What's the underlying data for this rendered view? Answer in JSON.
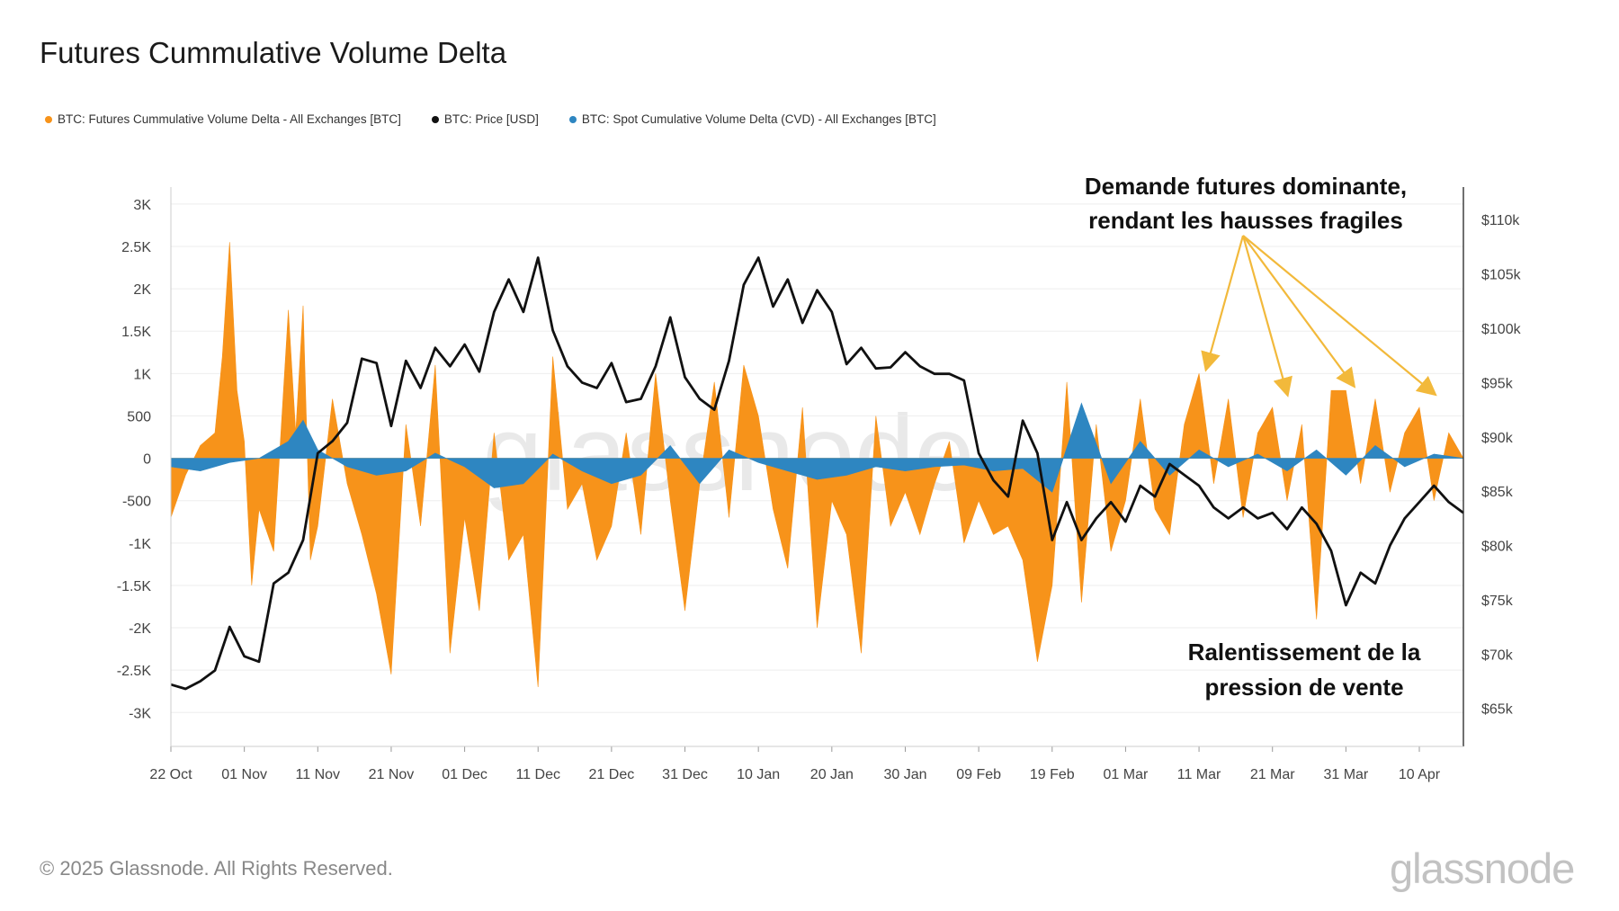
{
  "chart_data": {
    "type": "bar+line",
    "title": "Futures Cummulative Volume Delta",
    "legend": [
      {
        "label": "BTC: Futures Cummulative Volume Delta - All Exchanges [BTC]",
        "color": "#f7931a"
      },
      {
        "label": "BTC: Price [USD]",
        "color": "#111111"
      },
      {
        "label": "BTC: Spot Cumulative Volume Delta (CVD) - All Exchanges [BTC]",
        "color": "#2e86c1"
      }
    ],
    "x_ticks": [
      "22 Oct",
      "01 Nov",
      "11 Nov",
      "21 Nov",
      "01 Dec",
      "11 Dec",
      "21 Dec",
      "31 Dec",
      "10 Jan",
      "20 Jan",
      "30 Jan",
      "09 Feb",
      "19 Feb",
      "01 Mar",
      "11 Mar",
      "21 Mar",
      "31 Mar",
      "10 Apr"
    ],
    "x_range_days": [
      0,
      176
    ],
    "y_left_ticks": [
      "3K",
      "2.5K",
      "2K",
      "1.5K",
      "1K",
      "500",
      "0",
      "-500",
      "-1K",
      "-1.5K",
      "-2K",
      "-2.5K",
      "-3K"
    ],
    "y_left_range": [
      -3400,
      3200
    ],
    "y_right_ticks": [
      "$110k",
      "$105k",
      "$100k",
      "$95k",
      "$90k",
      "$85k",
      "$80k",
      "$75k",
      "$70k",
      "$65k"
    ],
    "y_right_range": [
      61500,
      113000
    ],
    "series": [
      {
        "name": "BTC: Futures Cummulative Volume Delta - All Exchanges [BTC]",
        "x": [
          0,
          2,
          4,
          6,
          7,
          8,
          9,
          10,
          11,
          12,
          14,
          16,
          17,
          18,
          19,
          20,
          22,
          24,
          26,
          28,
          30,
          32,
          34,
          36,
          38,
          40,
          42,
          44,
          46,
          48,
          50,
          52,
          54,
          56,
          58,
          60,
          62,
          64,
          66,
          68,
          70,
          72,
          74,
          76,
          78,
          80,
          82,
          84,
          86,
          88,
          90,
          92,
          94,
          96,
          98,
          100,
          102,
          104,
          106,
          108,
          110,
          112,
          114,
          116,
          118,
          120,
          122,
          124,
          126,
          128,
          130,
          132,
          134,
          136,
          138,
          140,
          142,
          144,
          146,
          148,
          150,
          152,
          154,
          156,
          158,
          160,
          162,
          164,
          166,
          168,
          170,
          172,
          174,
          176
        ],
        "values": [
          -700,
          -200,
          150,
          300,
          1200,
          2550,
          800,
          200,
          -1500,
          -600,
          -1100,
          1750,
          300,
          1800,
          -1200,
          -800,
          700,
          -300,
          -900,
          -1600,
          -2550,
          400,
          -800,
          1100,
          -2300,
          -700,
          -1800,
          300,
          -1200,
          -900,
          -2700,
          1200,
          -600,
          -300,
          -1200,
          -800,
          300,
          -900,
          1000,
          -500,
          -1800,
          -300,
          900,
          -700,
          1100,
          500,
          -600,
          -1300,
          600,
          -2000,
          -500,
          -900,
          -2300,
          500,
          -800,
          -400,
          -900,
          -300,
          200,
          -1000,
          -500,
          -900,
          -800,
          -1200,
          -2400,
          -1500,
          900,
          -1700,
          400,
          -1100,
          -500,
          700,
          -600,
          -900,
          400,
          1000,
          -300,
          700,
          -700,
          300,
          600,
          -500,
          400,
          -1900,
          800,
          800,
          -300,
          700,
          -400,
          300,
          600,
          -500,
          300,
          0
        ]
      },
      {
        "name": "BTC: Spot Cumulative Volume Delta (CVD) - All Exchanges [BTC]",
        "x": [
          0,
          4,
          8,
          12,
          16,
          18,
          20,
          24,
          28,
          32,
          36,
          40,
          44,
          48,
          52,
          56,
          60,
          64,
          68,
          72,
          76,
          80,
          84,
          88,
          92,
          96,
          100,
          104,
          108,
          112,
          116,
          120,
          124,
          128,
          132,
          136,
          140,
          144,
          148,
          152,
          156,
          160,
          164,
          168,
          172,
          176
        ],
        "values": [
          -100,
          -150,
          -50,
          0,
          200,
          450,
          100,
          -100,
          -200,
          -150,
          60,
          -100,
          -350,
          -300,
          50,
          -150,
          -300,
          -200,
          150,
          -300,
          100,
          -50,
          -150,
          -250,
          -200,
          -100,
          -150,
          -100,
          -80,
          -150,
          -120,
          -400,
          650,
          -300,
          200,
          -200,
          100,
          -100,
          50,
          -150,
          100,
          -200,
          150,
          -100,
          50,
          0
        ]
      },
      {
        "name": "BTC: Price [USD]",
        "x": [
          0,
          2,
          4,
          6,
          8,
          10,
          12,
          14,
          16,
          18,
          20,
          22,
          24,
          26,
          28,
          30,
          32,
          34,
          36,
          38,
          40,
          42,
          44,
          46,
          48,
          50,
          52,
          54,
          56,
          58,
          60,
          62,
          64,
          66,
          68,
          70,
          72,
          74,
          76,
          78,
          80,
          82,
          84,
          86,
          88,
          90,
          92,
          94,
          96,
          98,
          100,
          102,
          104,
          106,
          108,
          110,
          112,
          114,
          116,
          118,
          120,
          122,
          124,
          126,
          128,
          130,
          132,
          134,
          136,
          138,
          140,
          142,
          144,
          146,
          148,
          150,
          152,
          154,
          156,
          158,
          160,
          162,
          164,
          166,
          168,
          170,
          172,
          174,
          176
        ],
        "values": [
          67200,
          66800,
          67500,
          68500,
          72500,
          69800,
          69300,
          76500,
          77500,
          80500,
          88500,
          89600,
          91300,
          97200,
          96800,
          91000,
          97000,
          94500,
          98200,
          96500,
          98500,
          96000,
          101500,
          104500,
          101500,
          106500,
          99800,
          96500,
          95000,
          94500,
          96800,
          93200,
          93500,
          96500,
          101000,
          95500,
          93500,
          92500,
          97000,
          104000,
          106500,
          102000,
          104500,
          100500,
          103500,
          101500,
          96700,
          98200,
          96300,
          96400,
          97800,
          96500,
          95800,
          95800,
          95200,
          88500,
          86000,
          84500,
          91500,
          88500,
          80500,
          84000,
          80500,
          82500,
          84000,
          82200,
          85500,
          84500,
          87500,
          86500,
          85500,
          83500,
          82500,
          83500,
          82500,
          83000,
          81500,
          83500,
          82000,
          79500,
          74500,
          77500,
          76500,
          80000,
          82500,
          84000,
          85500,
          84000,
          83000
        ]
      }
    ],
    "annotations": [
      {
        "text_lines": [
          "Demande futures dominante,",
          "rendant les hausses fragiles"
        ],
        "arrow_targets_days": [
          141,
          152,
          161,
          172
        ]
      },
      {
        "text_lines": [
          "Ralentissement de la",
          "pression de vente"
        ]
      }
    ]
  },
  "footer": {
    "copyright": "© 2025 Glassnode. All Rights Reserved.",
    "brand": "glassnode"
  },
  "watermark": "glassnode"
}
